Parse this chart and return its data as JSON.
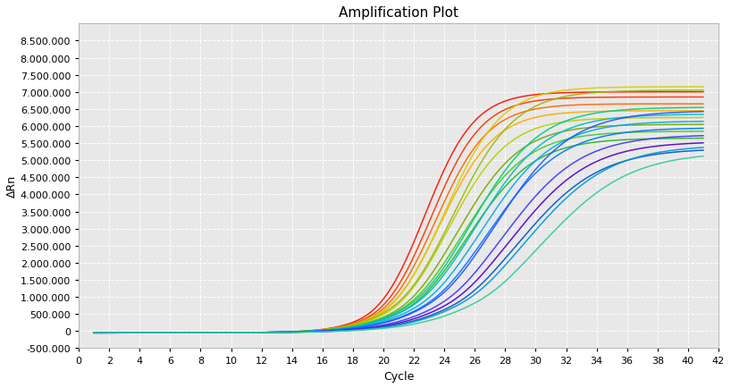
{
  "title": "Amplification Plot",
  "xlabel": "Cycle",
  "ylabel": "ΔRn",
  "xlim": [
    0,
    42
  ],
  "ylim": [
    -500000,
    9000000
  ],
  "xticks": [
    0,
    2,
    4,
    6,
    8,
    10,
    12,
    14,
    16,
    18,
    20,
    22,
    24,
    26,
    28,
    30,
    32,
    34,
    36,
    38,
    40,
    42
  ],
  "ytick_values": [
    -500000,
    0,
    500000,
    1000000,
    1500000,
    2000000,
    2500000,
    3000000,
    3500000,
    4000000,
    4500000,
    5000000,
    5500000,
    6000000,
    6500000,
    7000000,
    7500000,
    8000000,
    8500000
  ],
  "background_color": "#ffffff",
  "plot_bg_color": "#e8e8e8",
  "title_fontsize": 11,
  "label_fontsize": 9,
  "tick_fontsize": 8,
  "line_width": 1.1,
  "curves": [
    {
      "color": "#ff1100",
      "midpoint": 22.8,
      "L": 7050000,
      "k": 0.62
    },
    {
      "color": "#ff3300",
      "midpoint": 23.2,
      "L": 6900000,
      "k": 0.6
    },
    {
      "color": "#ff6600",
      "midpoint": 23.5,
      "L": 6700000,
      "k": 0.58
    },
    {
      "color": "#ffaa00",
      "midpoint": 23.8,
      "L": 6500000,
      "k": 0.56
    },
    {
      "color": "#ddcc00",
      "midpoint": 24.1,
      "L": 7200000,
      "k": 0.54
    },
    {
      "color": "#bbcc00",
      "midpoint": 24.4,
      "L": 6300000,
      "k": 0.52
    },
    {
      "color": "#99bb00",
      "midpoint": 24.7,
      "L": 7100000,
      "k": 0.5
    },
    {
      "color": "#77aa00",
      "midpoint": 25.0,
      "L": 6100000,
      "k": 0.49
    },
    {
      "color": "#44cc22",
      "midpoint": 25.3,
      "L": 5900000,
      "k": 0.47
    },
    {
      "color": "#22bb22",
      "midpoint": 25.6,
      "L": 5700000,
      "k": 0.46
    },
    {
      "color": "#00cc88",
      "midpoint": 25.9,
      "L": 6600000,
      "k": 0.45
    },
    {
      "color": "#00bbcc",
      "midpoint": 26.2,
      "L": 6400000,
      "k": 0.44
    },
    {
      "color": "#00aaee",
      "midpoint": 26.6,
      "L": 6200000,
      "k": 0.43
    },
    {
      "color": "#0077ff",
      "midpoint": 27.0,
      "L": 6000000,
      "k": 0.42
    },
    {
      "color": "#2255ff",
      "midpoint": 27.5,
      "L": 6500000,
      "k": 0.41
    },
    {
      "color": "#4433ff",
      "midpoint": 28.0,
      "L": 5800000,
      "k": 0.4
    },
    {
      "color": "#5500cc",
      "midpoint": 28.5,
      "L": 5600000,
      "k": 0.39
    },
    {
      "color": "#0055cc",
      "midpoint": 29.0,
      "L": 5400000,
      "k": 0.38
    },
    {
      "color": "#0099cc",
      "midpoint": 29.5,
      "L": 5500000,
      "k": 0.37
    },
    {
      "color": "#33cc99",
      "midpoint": 30.5,
      "L": 5300000,
      "k": 0.35
    }
  ]
}
